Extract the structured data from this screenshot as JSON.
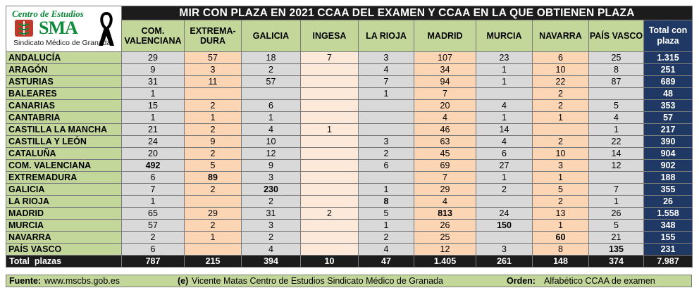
{
  "logo": {
    "title": "Centro de Estudios",
    "brand": "SMA",
    "subtitle": "Sindicato Médico de Granada"
  },
  "title": "MIR CON PLAZA EN 2021 CCAA DEL EXAMEN Y CCAA EN LA QUE OBTIENEN PLAZA",
  "columns": [
    "COM. VALENCIANA",
    "EXTREMA-DURA",
    "GALICIA",
    "INGESA",
    "LA RIOJA",
    "MADRID",
    "MURCIA",
    "NAVARRA",
    "PAÍS VASCO"
  ],
  "total_header": "Total con plaza",
  "rows": [
    {
      "label": "ANDALUCÍA",
      "values": [
        "29",
        "57",
        "18",
        "7",
        "3",
        "107",
        "23",
        "6",
        "25"
      ],
      "total": "1.315"
    },
    {
      "label": "ARAGÓN",
      "values": [
        "9",
        "3",
        "2",
        "",
        "4",
        "34",
        "1",
        "10",
        "8"
      ],
      "total": "251"
    },
    {
      "label": "ASTURIAS",
      "values": [
        "31",
        "11",
        "57",
        "",
        "7",
        "94",
        "1",
        "22",
        "87"
      ],
      "total": "689"
    },
    {
      "label": "BALEARES",
      "values": [
        "1",
        "",
        "",
        "",
        "1",
        "7",
        "",
        "2",
        ""
      ],
      "total": "48"
    },
    {
      "label": "CANARIAS",
      "values": [
        "15",
        "2",
        "6",
        "",
        "",
        "20",
        "4",
        "2",
        "5"
      ],
      "total": "353"
    },
    {
      "label": "CANTABRIA",
      "values": [
        "1",
        "1",
        "1",
        "",
        "",
        "4",
        "1",
        "1",
        "4"
      ],
      "total": "57"
    },
    {
      "label": "CASTILLA LA MANCHA",
      "values": [
        "21",
        "2",
        "4",
        "1",
        "",
        "46",
        "14",
        "",
        "1"
      ],
      "total": "217"
    },
    {
      "label": "CASTILLA Y LEÓN",
      "values": [
        "24",
        "9",
        "10",
        "",
        "3",
        "63",
        "4",
        "2",
        "22"
      ],
      "total": "390"
    },
    {
      "label": "CATALUÑA",
      "values": [
        "20",
        "2",
        "12",
        "",
        "2",
        "45",
        "6",
        "10",
        "14"
      ],
      "total": "904"
    },
    {
      "label": "COM. VALENCIANA",
      "values": [
        "492",
        "5",
        "9",
        "",
        "6",
        "69",
        "27",
        "3",
        "12"
      ],
      "total": "902"
    },
    {
      "label": "EXTREMADURA",
      "values": [
        "6",
        "89",
        "3",
        "",
        "",
        "7",
        "1",
        "1",
        ""
      ],
      "total": "188"
    },
    {
      "label": "GALICIA",
      "values": [
        "7",
        "2",
        "230",
        "",
        "1",
        "29",
        "2",
        "5",
        "7"
      ],
      "total": "355"
    },
    {
      "label": "LA RIOJA",
      "values": [
        "1",
        "",
        "2",
        "",
        "8",
        "4",
        "",
        "2",
        "1"
      ],
      "total": "26"
    },
    {
      "label": "MADRID",
      "values": [
        "65",
        "29",
        "31",
        "2",
        "5",
        "813",
        "24",
        "13",
        "26"
      ],
      "total": "1.558"
    },
    {
      "label": "MURCIA",
      "values": [
        "57",
        "2",
        "3",
        "",
        "1",
        "26",
        "150",
        "1",
        "5"
      ],
      "total": "348"
    },
    {
      "label": "NAVARRA",
      "values": [
        "2",
        "1",
        "2",
        "",
        "2",
        "25",
        "",
        "60",
        "21"
      ],
      "total": "155"
    },
    {
      "label": "PAÍS VASCO",
      "values": [
        "6",
        "",
        "4",
        "",
        "4",
        "12",
        "3",
        "8",
        "135"
      ],
      "total": "231"
    }
  ],
  "totals": {
    "label": "Total  plazas",
    "values": [
      "787",
      "215",
      "394",
      "10",
      "47",
      "1.405",
      "261",
      "148",
      "374"
    ],
    "total": "7.987"
  },
  "source": {
    "fuente_label": "Fuente:",
    "fuente_value": "www.mscbs.gob.es",
    "credit_label": "(e)",
    "credit_value": "Vicente Matas Centro de Estudios Sindicato Médico de Granada",
    "orden_label": "Orden:",
    "orden_value": "Alfabético CCAA de examen"
  },
  "colors": {
    "header_green": "#c4d79b",
    "total_navy": "#1f3864",
    "bar_black": "#1c1c1c",
    "cell_gray": "#d9d9d9",
    "cell_peach": "#fcd5b4"
  }
}
